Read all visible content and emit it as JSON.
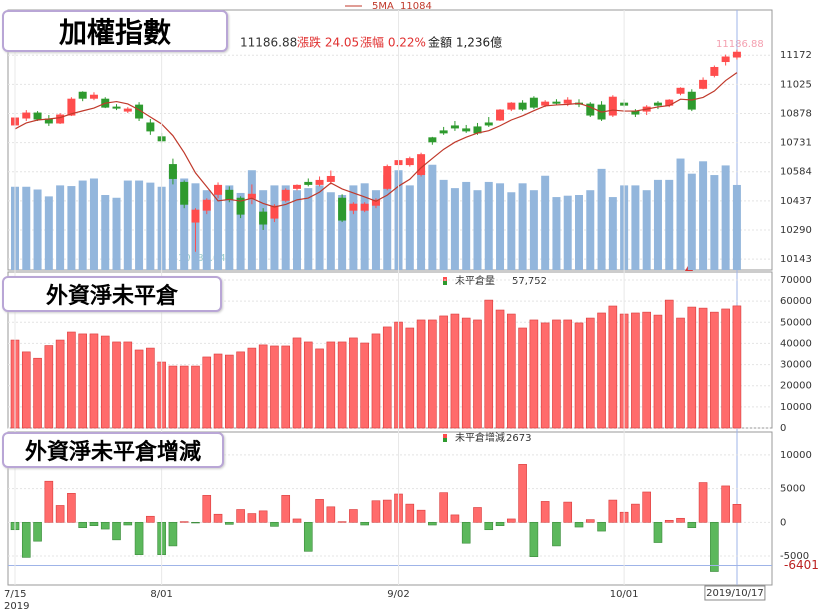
{
  "chart_data": [
    {
      "type": "candlestick",
      "title": "加權指數",
      "ma_name": "5MA",
      "header_items": [
        {
          "text": "漲跌 24.05",
          "color": "#e03030"
        },
        {
          "text": "漲幅 0.22%",
          "color": "#e03030"
        },
        {
          "text": "金額 1,236億",
          "color": "#222222"
        }
      ],
      "up_color": "#ff4d4d",
      "down_color": "#2e9a2e",
      "volume_color": "#93b6dc",
      "ma_color": "#c0392b",
      "open": [
        10820,
        10855,
        10880,
        10850,
        10830,
        10870,
        10985,
        10955,
        10950,
        10910,
        10890,
        10920,
        10830,
        10760,
        10620,
        10530,
        10330,
        10390,
        10470,
        10490,
        10450,
        10450,
        10380,
        10350,
        10440,
        10500,
        10530,
        10520,
        10535,
        10450,
        10390,
        10390,
        10415,
        10500,
        10620,
        10620,
        10570,
        10755,
        10790,
        10815,
        10800,
        10810,
        10830,
        10845,
        10900,
        10930,
        10955,
        10920,
        10935,
        10930,
        10930,
        10925,
        10920,
        10870,
        10930,
        10890,
        10890,
        10930,
        10920,
        10980,
        10985,
        11005,
        11070,
        11140,
        11162.83
      ],
      "high": [
        10870,
        10895,
        10890,
        10870,
        10880,
        10960,
        10990,
        10985,
        10960,
        10925,
        10910,
        10935,
        10850,
        10780,
        10650,
        10540,
        10400,
        10450,
        10530,
        10510,
        10460,
        10520,
        10400,
        10420,
        10500,
        10520,
        10550,
        10560,
        10590,
        10470,
        10430,
        10430,
        10450,
        10620,
        10650,
        10660,
        10680,
        10760,
        10810,
        10840,
        10820,
        10830,
        10860,
        10900,
        10935,
        10945,
        10965,
        10945,
        10950,
        10960,
        10950,
        10935,
        10940,
        10970,
        10950,
        10900,
        10920,
        10940,
        10950,
        11010,
        11000,
        11060,
        11120,
        11175,
        11200
      ],
      "low": [
        10790,
        10840,
        10840,
        10815,
        10825,
        10865,
        10940,
        10945,
        10905,
        10895,
        10880,
        10840,
        10770,
        10730,
        10520,
        10400,
        10180.04,
        10370,
        10450,
        10430,
        10350,
        10420,
        10290,
        10330,
        10430,
        10490,
        10510,
        10510,
        10520,
        10330,
        10370,
        10380,
        10400,
        10490,
        10600,
        10610,
        10560,
        10720,
        10770,
        10790,
        10780,
        10770,
        10810,
        10840,
        10890,
        10890,
        10900,
        10910,
        10920,
        10915,
        10910,
        10860,
        10840,
        10860,
        10910,
        10860,
        10870,
        10900,
        10910,
        10970,
        10890,
        11000,
        11060,
        11120,
        11150
      ],
      "close": [
        10855,
        10880,
        10850,
        10830,
        10870,
        10950,
        10955,
        10970,
        10910,
        10905,
        10900,
        10855,
        10790,
        10740,
        10550,
        10420,
        10390,
        10440,
        10515,
        10445,
        10370,
        10470,
        10320,
        10410,
        10490,
        10515,
        10520,
        10540,
        10560,
        10340,
        10420,
        10420,
        10440,
        10610,
        10640,
        10650,
        10670,
        10735,
        10780,
        10805,
        10790,
        10780,
        10820,
        10895,
        10930,
        10900,
        10910,
        10935,
        10930,
        10945,
        10925,
        10870,
        10850,
        10960,
        10920,
        10875,
        10910,
        10920,
        10945,
        11005,
        10900,
        11045,
        11110,
        11162.83,
        11186.88
      ],
      "ma5": [
        10800,
        10830,
        10845,
        10850,
        10857,
        10876,
        10891,
        10905,
        10930,
        10938,
        10926,
        10896,
        10860,
        10825,
        10766,
        10680,
        10578,
        10508,
        10437,
        10444,
        10436,
        10450,
        10424,
        10406,
        10419,
        10442,
        10451,
        10481,
        10527,
        10497,
        10477,
        10457,
        10435,
        10466,
        10511,
        10546,
        10604,
        10651,
        10697,
        10733,
        10758,
        10779,
        10791,
        10816,
        10845,
        10866,
        10892,
        10916,
        10921,
        10924,
        10929,
        10910,
        10885,
        10895,
        10890,
        10890,
        10900,
        10911,
        10918,
        10950,
        10946,
        10959,
        10991,
        11044,
        11084
      ],
      "volume": [
        1210,
        1210,
        1170,
        1070,
        1230,
        1220,
        1300,
        1330,
        1090,
        1050,
        1300,
        1300,
        1270,
        1210,
        1450,
        1330,
        1260,
        1160,
        1230,
        1230,
        1120,
        1450,
        1160,
        1230,
        1230,
        1160,
        1190,
        1230,
        1130,
        1090,
        1230,
        1260,
        1160,
        1380,
        1450,
        1230,
        1450,
        1530,
        1310,
        1190,
        1280,
        1160,
        1280,
        1260,
        1130,
        1260,
        1160,
        1370,
        1060,
        1080,
        1090,
        1160,
        1470,
        1060,
        1230,
        1230,
        1160,
        1310,
        1310,
        1620,
        1400,
        1580,
        1380,
        1520,
        1236
      ],
      "volume_ylim": [
        0,
        3750
      ],
      "ylim": [
        10088,
        11390
      ],
      "yticks": [
        10143,
        10290,
        10437,
        10584,
        10731,
        10878,
        11025,
        11172
      ],
      "grid": true
    },
    {
      "type": "bar",
      "title": "外資淨未平倉",
      "series": [
        {
          "name": "未平倉量",
          "color": "#ff6b6b",
          "values": [
            41600,
            36000,
            33000,
            39000,
            41600,
            45400,
            44500,
            44500,
            43500,
            40700,
            40700,
            36900,
            37800,
            31200,
            29300,
            29300,
            29300,
            33600,
            35000,
            34500,
            36000,
            37800,
            39300,
            38800,
            38800,
            42600,
            40700,
            37400,
            40700,
            40700,
            42600,
            40200,
            44500,
            47800,
            50100,
            47300,
            51100,
            51100,
            53000,
            53900,
            52000,
            51100,
            60500,
            55800,
            53900,
            47300,
            51100,
            49700,
            51100,
            51100,
            49700,
            52000,
            54400,
            57700,
            53900,
            54400,
            54800,
            53400,
            60500,
            52000,
            57200,
            56700,
            54800,
            56300,
            57752
          ]
        }
      ],
      "legend_value": {
        "value": 57752,
        "label": "57,752"
      },
      "ylim": [
        0,
        70000
      ],
      "yticks": [
        0,
        10000,
        20000,
        30000,
        40000,
        50000,
        60000,
        70000
      ],
      "grid": true
    },
    {
      "type": "signed_bar",
      "title": "外資淨未平倉增減",
      "series": [
        {
          "name": "未平倉增減",
          "up_color": "#ff6b6b",
          "down_color": "#5cb85c",
          "values": [
            -1100,
            -5200,
            -2800,
            6100,
            2500,
            4300,
            -800,
            -500,
            -1000,
            -2600,
            -400,
            -4800,
            900,
            -4800,
            -3500,
            100,
            -100,
            4000,
            1200,
            -300,
            1900,
            1300,
            1700,
            -600,
            4000,
            500,
            -4300,
            3400,
            2300,
            100,
            1900,
            -400,
            3200,
            3300,
            4200,
            2700,
            1800,
            -400,
            4400,
            1100,
            -3100,
            2200,
            -1100,
            -500,
            500,
            8600,
            -5100,
            3100,
            -3500,
            3000,
            -700,
            400,
            -1300,
            3300,
            1500,
            2700,
            4500,
            -3000,
            300,
            600,
            -800,
            5900,
            -7300,
            5400,
            2673
          ]
        }
      ],
      "crosshair_value": -6401,
      "categories": [
        "7/15",
        null,
        null,
        null,
        null,
        null,
        null,
        null,
        null,
        null,
        null,
        null,
        null,
        "8/01",
        null,
        null,
        null,
        null,
        null,
        null,
        null,
        null,
        null,
        null,
        null,
        null,
        null,
        null,
        null,
        null,
        null,
        null,
        null,
        null,
        "9/02",
        null,
        null,
        null,
        null,
        null,
        null,
        null,
        null,
        null,
        null,
        null,
        null,
        null,
        null,
        null,
        null,
        null,
        null,
        null,
        "10/01",
        null,
        null,
        null,
        null,
        null,
        null,
        null,
        null,
        null,
        "2019/10/17"
      ],
      "x_year_label": "2019",
      "ylim": [
        -9300,
        13400
      ],
      "yticks": [
        -5000,
        0,
        5000,
        10000
      ],
      "grid": true
    }
  ]
}
